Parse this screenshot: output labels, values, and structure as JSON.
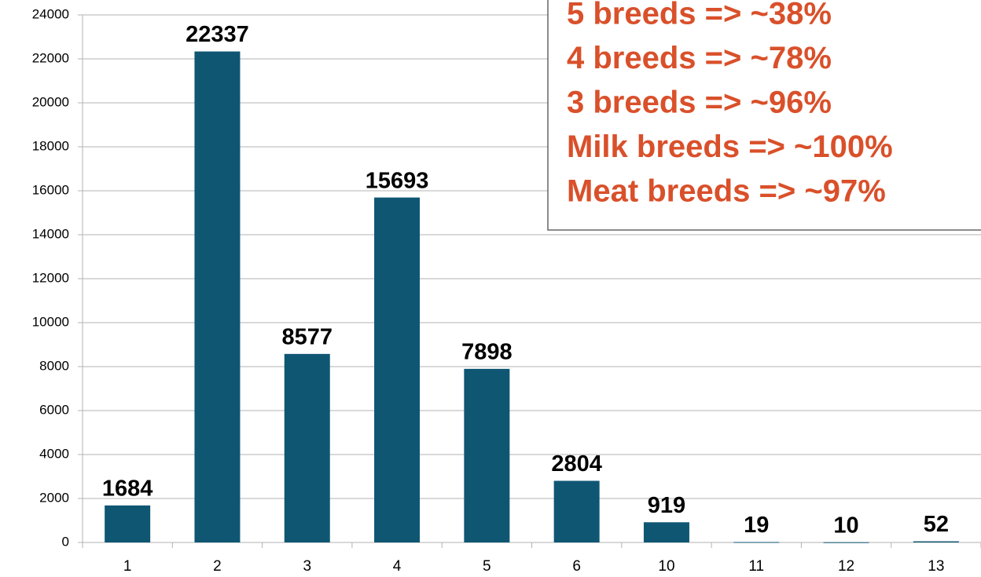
{
  "chart_data": {
    "type": "bar",
    "categories": [
      "1",
      "2",
      "3",
      "4",
      "5",
      "6",
      "10",
      "11",
      "12",
      "13"
    ],
    "values": [
      1684,
      22337,
      8577,
      15693,
      7898,
      2804,
      919,
      19,
      10,
      52
    ],
    "color": "#0f5673",
    "ylim": [
      0,
      24000
    ],
    "yticks": [
      0,
      2000,
      4000,
      6000,
      8000,
      10000,
      12000,
      14000,
      16000,
      18000,
      20000,
      22000,
      24000
    ],
    "grid": true,
    "annotations": [
      "5 breeds => ~38%",
      "4 breeds => ~78%",
      "3 breeds => ~96%",
      "Milk breeds => ~100%",
      "Meat breeds => ~97%"
    ],
    "annotation_color": "#d9502a"
  }
}
